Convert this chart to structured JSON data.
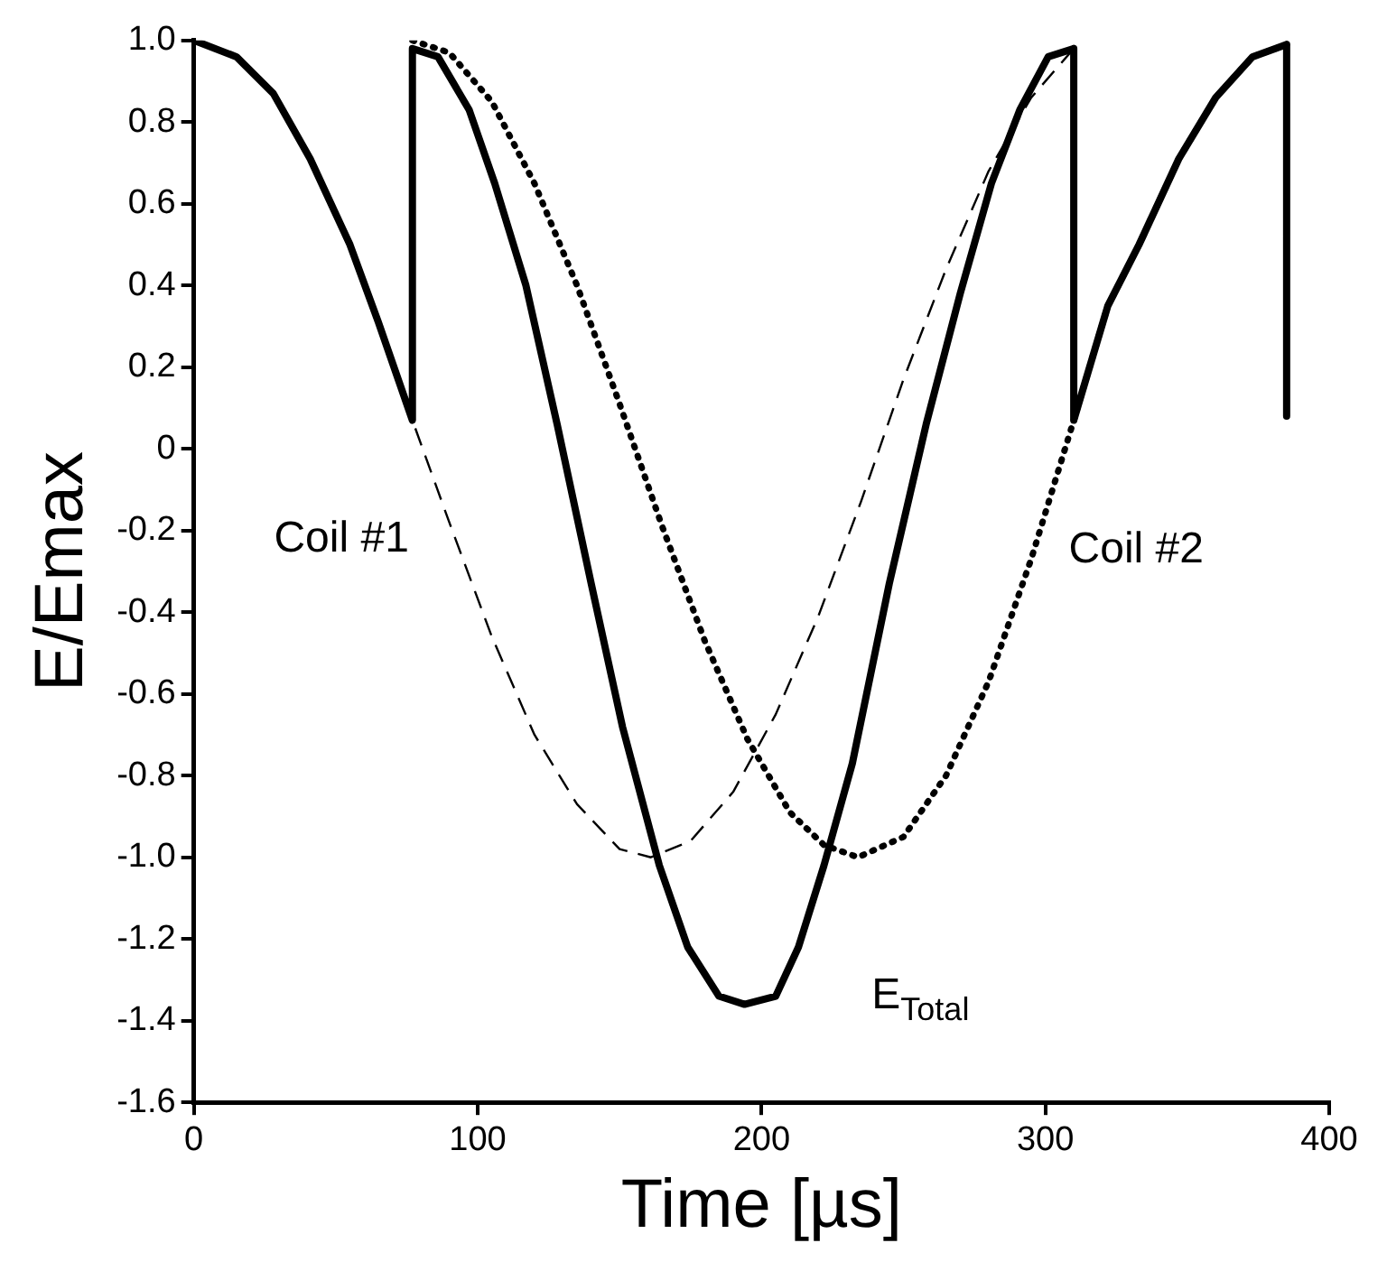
{
  "chart_data": {
    "type": "line",
    "xlabel": "Time [µs]",
    "ylabel": "E/Emax",
    "xlim": [
      0,
      400
    ],
    "xticks": [
      0,
      100,
      200,
      300,
      400
    ],
    "ylim": [
      -1.6,
      1.0
    ],
    "yticks": [
      {
        "value": -1.6,
        "label": "-1.6"
      },
      {
        "value": -1.4,
        "label": "-1.4"
      },
      {
        "value": -1.2,
        "label": "-1.2"
      },
      {
        "value": -1.0,
        "label": "-1.0"
      },
      -0.8,
      -0.6,
      -0.4,
      -0.2,
      0,
      0.2,
      0.4,
      0.6,
      0.8,
      {
        "value": 1.0,
        "label": "1.0"
      }
    ],
    "grid": false,
    "legend": false,
    "marker": "none",
    "series": [
      {
        "name": "Coil #1",
        "color": "#000000",
        "line_style": "dashed",
        "x": [
          0,
          15,
          28,
          41,
          55,
          65,
          77,
          90,
          105,
          120,
          135,
          150,
          161,
          175,
          190,
          205,
          220,
          235,
          250,
          265,
          280,
          295,
          310
        ],
        "values": [
          1.0,
          0.96,
          0.87,
          0.71,
          0.5,
          0.31,
          0.07,
          -0.18,
          -0.46,
          -0.7,
          -0.87,
          -0.98,
          -1.0,
          -0.96,
          -0.84,
          -0.65,
          -0.41,
          -0.13,
          0.17,
          0.44,
          0.68,
          0.86,
          0.98
        ]
      },
      {
        "name": "Coil #2",
        "color": "#000000",
        "line_style": "dotted",
        "x": [
          77,
          90,
          105,
          120,
          135,
          150,
          165,
          180,
          195,
          210,
          222,
          234,
          250,
          265,
          280,
          295,
          310,
          322,
          333,
          347,
          360,
          373,
          385
        ],
        "values": [
          1.0,
          0.97,
          0.85,
          0.65,
          0.4,
          0.11,
          -0.19,
          -0.47,
          -0.71,
          -0.89,
          -0.97,
          -1.0,
          -0.95,
          -0.8,
          -0.57,
          -0.27,
          0.07,
          0.35,
          0.5,
          0.71,
          0.86,
          0.96,
          0.99
        ]
      },
      {
        "name": "E$_{Total}$",
        "color": "#000000",
        "line_style": "solid",
        "x": [
          0,
          15,
          28,
          41,
          55,
          65,
          77,
          77,
          86,
          97,
          106,
          117,
          128,
          140,
          151,
          164,
          174,
          185,
          194,
          205,
          213,
          222,
          232,
          245,
          258,
          270,
          281,
          291,
          301,
          310,
          310,
          322,
          333,
          347,
          360,
          373,
          385,
          385
        ],
        "values": [
          1.0,
          0.96,
          0.87,
          0.71,
          0.5,
          0.31,
          0.07,
          0.98,
          0.96,
          0.83,
          0.65,
          0.4,
          0.06,
          -0.33,
          -0.68,
          -1.02,
          -1.22,
          -1.34,
          -1.36,
          -1.34,
          -1.22,
          -1.02,
          -0.77,
          -0.33,
          0.06,
          0.38,
          0.65,
          0.83,
          0.96,
          0.98,
          0.07,
          0.35,
          0.5,
          0.71,
          0.86,
          0.96,
          0.99,
          0.08
        ]
      }
    ]
  }
}
